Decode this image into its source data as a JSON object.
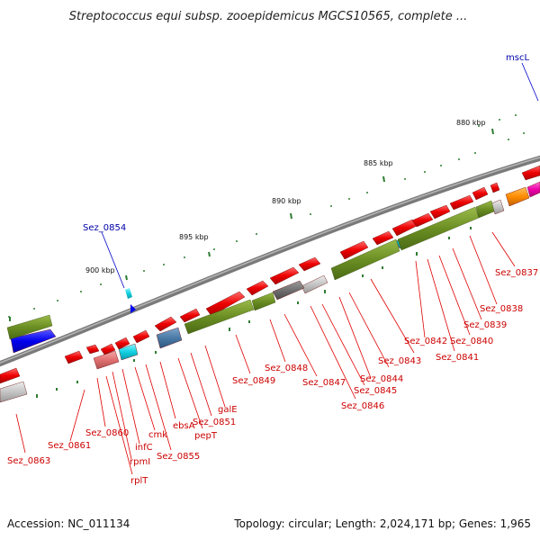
{
  "title": "Streptococcus equi subsp. zooepidemicus MGCS10565, complete ...",
  "accession": "Accession: NC_011134",
  "topology": "Topology: circular; Length: 2,024,171 bp; Genes: 1,965",
  "kbp_ticks": [
    "880 kbp",
    "885 kbp",
    "890 kbp",
    "895 kbp",
    "900 kbp"
  ],
  "labels": {
    "mscL": "mscL",
    "sez0854": "Sez_0854",
    "sez0837": "Sez_0837",
    "sez0838": "Sez_0838",
    "sez0839": "Sez_0839",
    "sez0840": "Sez_0840",
    "sez0841": "Sez_0841",
    "sez0842": "Sez_0842",
    "sez0843": "Sez_0843",
    "sez0844": "Sez_0844",
    "sez0845": "Sez_0845",
    "sez0846": "Sez_0846",
    "sez0847": "Sez_0847",
    "sez0848": "Sez_0848",
    "sez0849": "Sez_0849",
    "galE": "galE",
    "sez0851": "Sez_0851",
    "pepT": "pepT",
    "ebsA": "ebsA",
    "sez0855": "Sez_0855",
    "cmk": "cmk",
    "infC": "infC",
    "rpmI": "rpmI",
    "rplT": "rplT",
    "sez0860": "Sez_0860",
    "sez0861": "Sez_0861",
    "sez0863": "Sez_0863"
  },
  "colors": {
    "cds": "#ee0000",
    "label_red": "#cc0000",
    "label_blue": "#0000aa",
    "olive": "#6b8e23",
    "tick": "#2e7d32",
    "backbone": "#888888"
  }
}
